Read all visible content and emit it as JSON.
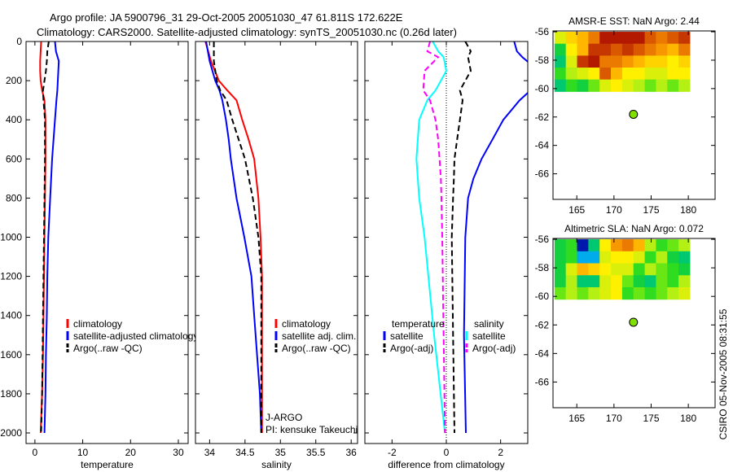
{
  "title": {
    "line1": "Argo profile: JA 5900796_31 29-Oct-2005 20051030_47 61.811S 172.622E",
    "line2": "Climatology: CARS2000. Satellite-adjusted climatology: synTS_20051030.nc (0.26d later)"
  },
  "credit": "CSIRO 05-Nov-2005 08:31:55",
  "chart_data": [
    {
      "type": "line",
      "xlabel": "temperature",
      "ylabel": "",
      "xlim": [
        -1.85,
        32.05
      ],
      "ylim": [
        0,
        2054
      ],
      "xticks": [
        "0",
        "10",
        "20",
        "30"
      ],
      "yticks": [
        "0",
        "200",
        "400",
        "600",
        "800",
        "1000",
        "1200",
        "1400",
        "1600",
        "1800",
        "2000"
      ],
      "depth": [
        0,
        50,
        100,
        150,
        200,
        250,
        300,
        400,
        600,
        800,
        1000,
        1200,
        1400,
        1600,
        1800,
        2000
      ],
      "series": [
        {
          "name": "climatology",
          "color": "#ff0000",
          "dashed": false,
          "values": [
            1.3,
            1.2,
            1.1,
            1.1,
            1.2,
            1.5,
            2.0,
            2.2,
            2.2,
            2.1,
            2.0,
            1.9,
            1.8,
            1.7,
            1.5,
            1.2
          ]
        },
        {
          "name": "satellite-adjusted climatology",
          "color": "#0000ff",
          "dashed": false,
          "values": [
            4.2,
            4.4,
            5.0,
            4.9,
            4.8,
            4.7,
            4.5,
            4.2,
            3.6,
            3.2,
            2.8,
            2.6,
            2.5,
            2.3,
            2.2,
            2.0
          ]
        },
        {
          "name": "Argo(..raw -QC)",
          "color": "#000000",
          "dashed": true,
          "values": [
            2.9,
            2.6,
            2.5,
            2.3,
            2.0,
            1.7,
            1.8,
            2.1,
            2.1,
            2.0,
            1.9,
            1.8,
            1.7,
            1.6,
            1.5,
            1.3
          ]
        }
      ],
      "legend": {
        "position": "center-right"
      }
    },
    {
      "type": "line",
      "xlabel": "salinity",
      "ylabel": "",
      "xlim": [
        33.8,
        36.09
      ],
      "ylim": [
        0,
        2054
      ],
      "xticks": [
        "34",
        "34.5",
        "35",
        "35.5",
        "36"
      ],
      "yticks": [],
      "depth": [
        0,
        100,
        200,
        250,
        300,
        400,
        500,
        600,
        800,
        1000,
        1200,
        1400,
        1600,
        1800,
        2000
      ],
      "series": [
        {
          "name": "climatology",
          "color": "#ff0000",
          "dashed": false,
          "values": [
            33.94,
            34.02,
            34.13,
            34.25,
            34.38,
            34.46,
            34.55,
            34.63,
            34.69,
            34.72,
            34.74,
            34.74,
            34.74,
            34.74,
            34.74
          ]
        },
        {
          "name": "satellite adj. clim.",
          "color": "#0000ff",
          "dashed": false,
          "values": [
            33.95,
            34.0,
            34.08,
            34.14,
            34.18,
            34.23,
            34.27,
            34.3,
            34.38,
            34.49,
            34.59,
            34.63,
            34.67,
            34.71,
            34.73
          ]
        },
        {
          "name": "Argo(..raw -QC)",
          "color": "#000000",
          "dashed": true,
          "values": [
            34.06,
            34.06,
            34.1,
            34.15,
            34.24,
            34.32,
            34.41,
            34.5,
            34.61,
            34.69,
            34.73,
            34.73,
            34.73,
            34.73,
            34.73
          ]
        }
      ],
      "legend": {
        "position": "center-right"
      },
      "annotations": [
        "J-ARGO",
        "PI: kensuke Takeuchi"
      ]
    },
    {
      "type": "line",
      "xlabel": "difference from climatology",
      "ylabel": "",
      "xlim": [
        -3,
        3
      ],
      "ylim": [
        0,
        2054
      ],
      "xticks": [
        "-2",
        "0",
        "2"
      ],
      "yticks": [],
      "depth": [
        0,
        50,
        80,
        150,
        250,
        300,
        400,
        500,
        600,
        700,
        800,
        1000,
        1500,
        2000
      ],
      "series": [
        {
          "name": "temperature satellite",
          "color": "#0000ff",
          "dashed": false,
          "values": [
            2.5,
            2.6,
            2.8,
            3.4,
            3.1,
            2.7,
            2.1,
            1.7,
            1.3,
            1.0,
            0.8,
            0.7,
            0.65,
            0.72
          ]
        },
        {
          "name": "temperature Argo(-adj)",
          "color": "#000000",
          "dashed": true,
          "values": [
            0.7,
            0.9,
            0.8,
            0.9,
            0.5,
            0.6,
            0.5,
            0.4,
            0.3,
            0.28,
            0.25,
            0.2,
            0.25,
            0.3
          ]
        },
        {
          "name": "salinity satellite",
          "color": "#00ffff",
          "dashed": false,
          "values": [
            -0.5,
            -0.3,
            -0.1,
            0.0,
            -0.4,
            -0.7,
            -1.0,
            -1.05,
            -1.1,
            -1.05,
            -1.0,
            -0.8,
            -0.45,
            -0.05
          ]
        },
        {
          "name": "salinity Argo(-adj)",
          "color": "#ff00ff",
          "dashed": true,
          "values": [
            -0.6,
            -0.7,
            -0.3,
            -0.8,
            -0.85,
            -0.6,
            -0.4,
            -0.3,
            -0.25,
            -0.2,
            -0.18,
            -0.15,
            -0.1,
            -0.05
          ]
        }
      ],
      "zero_line": true,
      "legend": {
        "groups": [
          {
            "heading": "temperature",
            "items": [
              {
                "label": "satellite",
                "color": "#0000ff",
                "dashed": false
              },
              {
                "label": "Argo(-adj)",
                "color": "#000000",
                "dashed": true
              }
            ]
          },
          {
            "heading": "salinity",
            "items": [
              {
                "label": "satellite",
                "color": "#00ffff",
                "dashed": false
              },
              {
                "label": "Argo(-adj)",
                "color": "#ff00ff",
                "dashed": true
              }
            ]
          }
        ]
      }
    },
    {
      "type": "heatmap",
      "title": "AMSR-E SST: NaN Argo: 2.44",
      "xlim": [
        161.8,
        183.6
      ],
      "ylim": [
        -67.8,
        -55.94
      ],
      "xticks": [
        "165",
        "170",
        "175",
        "180"
      ],
      "yticks": [
        "-56",
        "-58",
        "-60",
        "-62",
        "-64",
        "-66"
      ],
      "grid_lon": [
        162,
        180.2
      ],
      "grid_lat": [
        -56,
        -60.2
      ],
      "values": [
        [
          0.55,
          0.65,
          0.7,
          0.8,
          0.95,
          0.95,
          0.95,
          0.95,
          0.85,
          0.8,
          0.85,
          0.9
        ],
        [
          0.35,
          0.6,
          0.7,
          0.9,
          0.9,
          0.85,
          0.9,
          0.85,
          0.8,
          0.75,
          0.7,
          0.8
        ],
        [
          0.3,
          0.55,
          0.9,
          0.95,
          0.8,
          0.8,
          0.75,
          0.7,
          0.65,
          0.65,
          0.6,
          0.65
        ],
        [
          0.4,
          0.5,
          0.55,
          0.6,
          0.85,
          0.7,
          0.6,
          0.6,
          0.55,
          0.55,
          0.6,
          0.6
        ],
        [
          0.3,
          0.4,
          0.35,
          0.45,
          0.55,
          0.6,
          0.55,
          0.5,
          0.45,
          0.5,
          0.45,
          0.5
        ]
      ],
      "point": {
        "lon": 172.622,
        "lat": -61.811,
        "color": "#80e000"
      }
    },
    {
      "type": "heatmap",
      "title": "Altimetric SLA: NaN Argo: 0.072",
      "xlim": [
        161.8,
        183.6
      ],
      "ylim": [
        -67.8,
        -55.94
      ],
      "xticks": [
        "165",
        "170",
        "175",
        "180"
      ],
      "yticks": [
        "-56",
        "-58",
        "-60",
        "-62",
        "-64",
        "-66"
      ],
      "grid_lon": [
        162,
        180.2
      ],
      "grid_lat": [
        -56,
        -60.2
      ],
      "values": [
        [
          0.35,
          0.4,
          0.05,
          0.3,
          0.6,
          0.75,
          0.8,
          0.7,
          0.5,
          0.4,
          0.45,
          0.5
        ],
        [
          0.35,
          0.4,
          0.2,
          0.2,
          0.55,
          0.6,
          0.6,
          0.55,
          0.4,
          0.5,
          0.35,
          0.3
        ],
        [
          0.35,
          0.55,
          0.7,
          0.65,
          0.6,
          0.55,
          0.55,
          0.4,
          0.5,
          0.45,
          0.4,
          0.35
        ],
        [
          0.35,
          0.5,
          0.3,
          0.3,
          0.55,
          0.6,
          0.45,
          0.35,
          0.3,
          0.45,
          0.4,
          0.5
        ],
        [
          0.45,
          0.5,
          0.45,
          0.5,
          0.55,
          0.6,
          0.4,
          0.45,
          0.4,
          0.45,
          0.5,
          0.55
        ]
      ],
      "point": {
        "lon": 172.622,
        "lat": -61.811,
        "color": "#80e000"
      }
    }
  ]
}
